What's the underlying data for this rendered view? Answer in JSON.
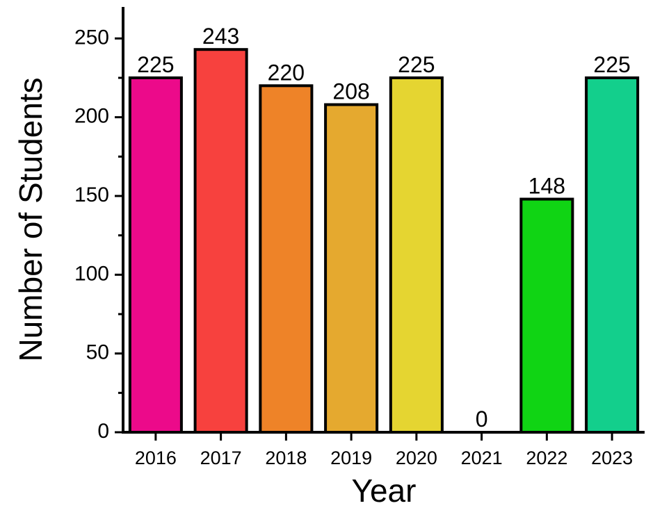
{
  "chart_data": {
    "type": "bar",
    "categories": [
      "2016",
      "2017",
      "2018",
      "2019",
      "2020",
      "2021",
      "2022",
      "2023"
    ],
    "values": [
      225,
      243,
      220,
      208,
      225,
      0,
      148,
      225
    ],
    "data_labels": [
      "225",
      "243",
      "220",
      "208",
      "225",
      "0",
      "148",
      "225"
    ],
    "colors": [
      "#ec0a8a",
      "#f7413e",
      "#ee8328",
      "#e5a92f",
      "#e5d531",
      "#ffffff",
      "#10d414",
      "#13cf8c"
    ],
    "title": "",
    "xlabel": "Year",
    "ylabel": "Number of Students",
    "ylim": [
      0,
      270
    ],
    "yticks": [
      0,
      50,
      100,
      150,
      200,
      250
    ],
    "ytick_labels": [
      "0",
      "50",
      "100",
      "150",
      "200",
      "250"
    ],
    "grid": false,
    "legend": "none"
  }
}
